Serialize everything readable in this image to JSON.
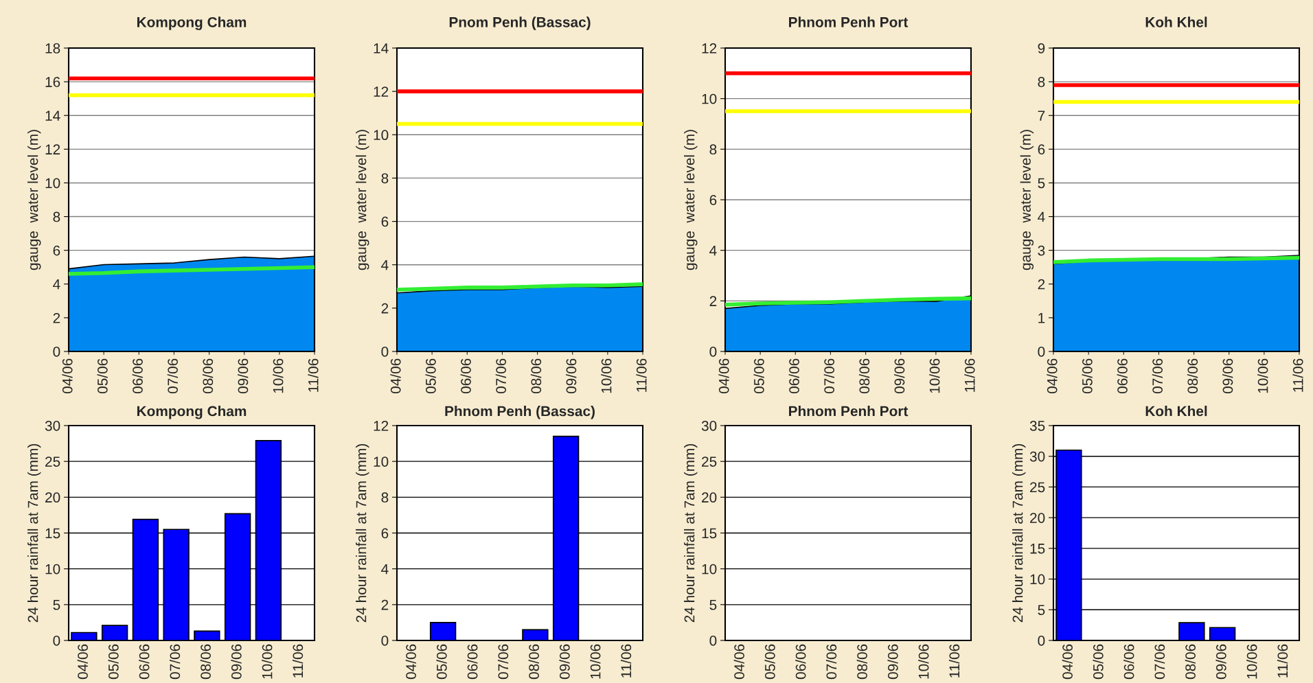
{
  "chart_data": [
    {
      "type": "area",
      "title": "Kompong Cham",
      "ylabel": "gauge  water level (m)",
      "categories": [
        "04/06",
        "05/06",
        "06/06",
        "07/06",
        "08/06",
        "09/06",
        "10/06",
        "11/06"
      ],
      "ylim": [
        0,
        18
      ],
      "yticks": [
        0,
        2,
        4,
        6,
        8,
        10,
        12,
        14,
        16,
        18
      ],
      "grid": "y",
      "series": [
        {
          "type": "area",
          "color": "#0088f0",
          "values": [
            4.9,
            5.15,
            5.2,
            5.25,
            5.45,
            5.6,
            5.5,
            5.65
          ]
        },
        {
          "type": "line",
          "color": "#33ee33",
          "values": [
            4.6,
            4.65,
            4.75,
            4.8,
            4.85,
            4.9,
            4.95,
            5.0
          ]
        }
      ],
      "ref_lines": [
        {
          "axis": "y",
          "value": 16.2,
          "color": "#ff0000"
        },
        {
          "axis": "y",
          "value": 15.2,
          "color": "#ffff00"
        }
      ]
    },
    {
      "type": "area",
      "title": "Pnom Penh (Bassac)",
      "ylabel": "gauge  water level (m)",
      "categories": [
        "04/06",
        "05/06",
        "06/06",
        "07/06",
        "08/06",
        "09/06",
        "10/06",
        "11/06"
      ],
      "ylim": [
        0,
        14
      ],
      "yticks": [
        0,
        2,
        4,
        6,
        8,
        10,
        12,
        14
      ],
      "grid": "y",
      "series": [
        {
          "type": "area",
          "color": "#0088f0",
          "values": [
            2.7,
            2.8,
            2.85,
            2.85,
            2.95,
            3.0,
            2.95,
            3.0
          ]
        },
        {
          "type": "line",
          "color": "#33ee33",
          "values": [
            2.85,
            2.9,
            2.95,
            2.95,
            3.0,
            3.05,
            3.05,
            3.1
          ]
        }
      ],
      "ref_lines": [
        {
          "axis": "y",
          "value": 12,
          "color": "#ff0000"
        },
        {
          "axis": "y",
          "value": 10.5,
          "color": "#ffff00"
        }
      ]
    },
    {
      "type": "area",
      "title": "Phnom Penh Port",
      "ylabel": "gauge  water level (m)",
      "categories": [
        "04/06",
        "05/06",
        "06/06",
        "07/06",
        "08/06",
        "09/06",
        "10/06",
        "11/06"
      ],
      "ylim": [
        0,
        12
      ],
      "yticks": [
        0,
        2,
        4,
        6,
        8,
        10,
        12
      ],
      "grid": "y",
      "series": [
        {
          "type": "area",
          "color": "#0088f0",
          "values": [
            1.7,
            1.82,
            1.88,
            1.88,
            1.95,
            2.0,
            1.98,
            2.2
          ]
        },
        {
          "type": "line",
          "color": "#33ee33",
          "values": [
            1.85,
            1.9,
            1.93,
            1.95,
            2.0,
            2.05,
            2.08,
            2.1
          ]
        }
      ],
      "ref_lines": [
        {
          "axis": "y",
          "value": 11,
          "color": "#ff0000"
        },
        {
          "axis": "y",
          "value": 9.5,
          "color": "#ffff00"
        }
      ]
    },
    {
      "type": "area",
      "title": "Koh Khel",
      "ylabel": "gauge  water level (m)",
      "categories": [
        "04/06",
        "05/06",
        "06/06",
        "07/06",
        "08/06",
        "09/06",
        "10/06",
        "11/06"
      ],
      "ylim": [
        0,
        9
      ],
      "yticks": [
        0,
        1,
        2,
        3,
        4,
        5,
        6,
        7,
        8,
        9
      ],
      "grid": "y",
      "series": [
        {
          "type": "area",
          "color": "#0088f0",
          "values": [
            2.6,
            2.68,
            2.7,
            2.75,
            2.75,
            2.8,
            2.8,
            2.85
          ]
        },
        {
          "type": "line",
          "color": "#33ee33",
          "values": [
            2.65,
            2.7,
            2.72,
            2.74,
            2.74,
            2.74,
            2.76,
            2.78
          ]
        }
      ],
      "ref_lines": [
        {
          "axis": "y",
          "value": 7.9,
          "color": "#ff0000"
        },
        {
          "axis": "y",
          "value": 7.4,
          "color": "#ffff00"
        }
      ]
    },
    {
      "type": "bar",
      "title": "Kompong Cham",
      "ylabel": "24 hour rainfall at 7am (mm)",
      "categories": [
        "04/06",
        "05/06",
        "06/06",
        "07/06",
        "08/06",
        "09/06",
        "10/06",
        "11/06"
      ],
      "ylim": [
        0,
        30
      ],
      "yticks": [
        0,
        5,
        10,
        15,
        20,
        25,
        30
      ],
      "grid": "y",
      "series": [
        {
          "color": "#0000ff",
          "values": [
            1.1,
            2.1,
            16.9,
            15.5,
            1.3,
            17.7,
            27.9,
            0
          ]
        }
      ]
    },
    {
      "type": "bar",
      "title": "Phnom Penh (Bassac)",
      "ylabel": "24 hour rainfall at 7am (mm)",
      "categories": [
        "04/06",
        "05/06",
        "06/06",
        "07/06",
        "08/06",
        "09/06",
        "10/06",
        "11/06"
      ],
      "ylim": [
        0,
        12
      ],
      "yticks": [
        0,
        2,
        4,
        6,
        8,
        10,
        12
      ],
      "grid": "y",
      "series": [
        {
          "color": "#0000ff",
          "values": [
            0,
            1.0,
            0,
            0,
            0.6,
            11.4,
            0,
            0
          ]
        }
      ]
    },
    {
      "type": "bar",
      "title": "Phnom Penh Port",
      "ylabel": "24 hour rainfall at 7am (mm)",
      "categories": [
        "04/06",
        "05/06",
        "06/06",
        "07/06",
        "08/06",
        "09/06",
        "10/06",
        "11/06"
      ],
      "ylim": [
        0,
        30
      ],
      "yticks": [
        0,
        5,
        10,
        15,
        20,
        25,
        30
      ],
      "grid": "y",
      "series": [
        {
          "color": "#0000ff",
          "values": [
            0,
            0,
            0,
            0,
            0,
            0,
            0,
            0
          ]
        }
      ]
    },
    {
      "type": "bar",
      "title": "Koh Khel",
      "ylabel": "24 hour rainfall at 7am (mm)",
      "categories": [
        "04/06",
        "05/06",
        "06/06",
        "07/06",
        "08/06",
        "09/06",
        "10/06",
        "11/06"
      ],
      "ylim": [
        0,
        35
      ],
      "yticks": [
        0,
        5,
        10,
        15,
        20,
        25,
        30,
        35
      ],
      "grid": "y",
      "series": [
        {
          "color": "#0000ff",
          "values": [
            31,
            0,
            0,
            0,
            2.9,
            2.1,
            0,
            0
          ]
        }
      ]
    }
  ]
}
